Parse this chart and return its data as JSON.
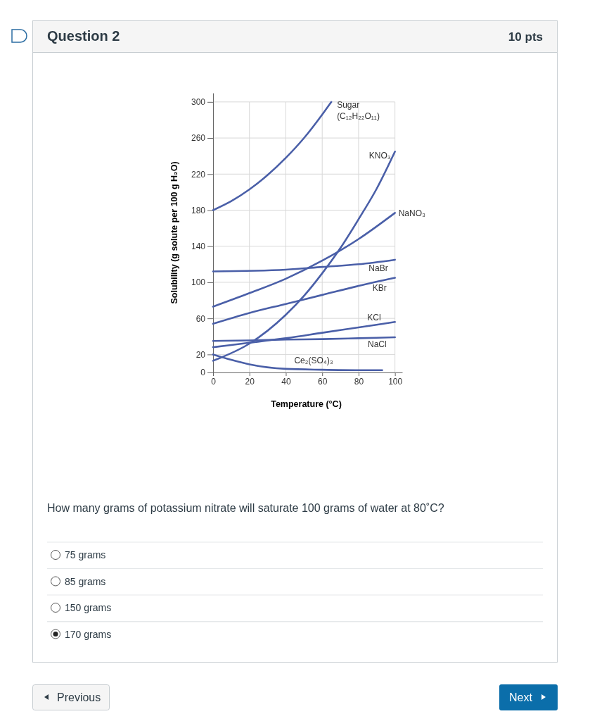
{
  "chart_data": {
    "type": "line",
    "title": "Question 2",
    "xlabel": "Temperature (°C)",
    "ylabel": "Solubility (g solute per 100 g H₂O)",
    "xlim": [
      0,
      104
    ],
    "ylim": [
      0,
      310
    ],
    "xticks": [
      0,
      20,
      40,
      60,
      80,
      100
    ],
    "yticks": [
      0,
      20,
      60,
      100,
      140,
      180,
      220,
      260,
      300
    ],
    "grid": true,
    "marker": "none",
    "line_style": "solid",
    "legend": false,
    "series": [
      {
        "name": "Sugar (C₁₂H₂₂O₁₁)",
        "color": "#4a5fa8",
        "x": [
          0,
          10,
          20,
          30,
          40,
          50,
          60,
          65
        ],
        "values": [
          180,
          190,
          203,
          219,
          238,
          260,
          286,
          300
        ]
      },
      {
        "name": "KNO₃",
        "color": "#4a5fa8",
        "x": [
          0,
          20,
          40,
          50,
          60,
          70,
          80,
          90,
          100
        ],
        "values": [
          13,
          32,
          64,
          85,
          110,
          138,
          170,
          204,
          245
        ]
      },
      {
        "name": "NaNO₃",
        "color": "#4a5fa8",
        "x": [
          0,
          20,
          40,
          60,
          80,
          100
        ],
        "values": [
          73,
          88,
          104,
          124,
          148,
          177
        ]
      },
      {
        "name": "NaBr",
        "color": "#4a5fa8",
        "x": [
          0,
          40,
          60,
          80,
          100
        ],
        "values": [
          112,
          114,
          117,
          120,
          125
        ]
      },
      {
        "name": "KBr",
        "color": "#4a5fa8",
        "x": [
          0,
          20,
          40,
          60,
          80,
          100
        ],
        "values": [
          54,
          66,
          76,
          86,
          96,
          105
        ]
      },
      {
        "name": "KCl",
        "color": "#4a5fa8",
        "x": [
          0,
          20,
          40,
          60,
          80,
          100
        ],
        "values": [
          28,
          33,
          38,
          44,
          50,
          56
        ]
      },
      {
        "name": "NaCl",
        "color": "#4a5fa8",
        "x": [
          0,
          20,
          40,
          60,
          80,
          100
        ],
        "values": [
          35,
          35.5,
          36.5,
          37,
          38,
          39
        ]
      },
      {
        "name": "Ce₂(SO₄)₃",
        "color": "#4a5fa8",
        "x": [
          0,
          10,
          20,
          40,
          60,
          80,
          93
        ],
        "values": [
          20,
          14,
          9,
          4,
          3,
          2.5,
          2.5
        ]
      }
    ],
    "annotations": [
      "10 pts",
      "How many grams of potassium nitrate will saturate 100 grams of water at 80˚C?",
      "75 grams",
      "85 grams",
      "150 grams",
      "170 grams",
      "Previous",
      "Next"
    ]
  }
}
